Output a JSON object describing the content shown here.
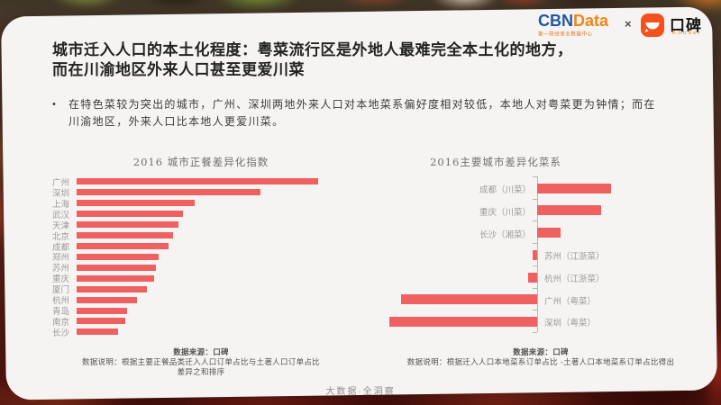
{
  "brand": {
    "cbn": "CBN",
    "cbn_data": "Data",
    "cbn_subtitle": "第一财经商业数据中心",
    "separator": "×",
    "koubei_name": "口碑",
    "koubei_latin": "Koubei"
  },
  "title": {
    "line1": "城市迁入人口的本土化程度：粤菜流行区是外地人最难完全本土化的地方，",
    "line2": "而在川渝地区外来人口甚至更爱川菜"
  },
  "bullet": {
    "marker": "•",
    "text": "在特色菜较为突出的城市，广州、深圳两地外来人口对本地菜系偏好度相对较低，本地人对粤菜更为钟情；而在川渝地区，外来人口比本地人更爱川菜。"
  },
  "chart_data": [
    {
      "type": "bar",
      "orientation": "horizontal",
      "title": "2016 城市正餐差异化指数",
      "categories": [
        "广州",
        "深圳",
        "上海",
        "武汉",
        "天津",
        "北京",
        "成都",
        "郑州",
        "苏州",
        "重庆",
        "厦门",
        "杭州",
        "青岛",
        "南京",
        "长沙"
      ],
      "values": [
        100,
        76,
        49,
        44,
        42,
        40,
        38,
        34,
        33,
        32,
        29,
        25,
        21,
        20,
        17
      ],
      "value_note": "relative index, 广州=100; estimated from bar lengths, no numeric axis shown",
      "legend_position": "none",
      "grid": false,
      "source": "数据来源：口碑",
      "description": "数据说明：根据主要正餐品类迁入人口订单占比与土著人口订单占比差异之和排序"
    },
    {
      "type": "bar",
      "orientation": "horizontal-diverging",
      "title": "2016主要城市差异化菜系",
      "categories": [
        "成都（川菜）",
        "重庆（川菜）",
        "长沙（湘菜）",
        "苏州（江浙菜）",
        "杭州（江浙菜）",
        "广州（粤菜）",
        "深圳（粤菜）"
      ],
      "values": [
        50,
        43,
        16,
        -3,
        -6,
        -92,
        -100
      ],
      "value_note": "relative scale, 深圳=-100; estimated from bar lengths, no numeric axis shown",
      "legend_position": "none",
      "grid": false,
      "source": "数据来源：口碑",
      "description": "数据说明：根据迁入人口本地菜系订单占比 -土著人口本地菜系订单占比得出"
    }
  ],
  "footer": {
    "slogan": "大数据·全洞察"
  },
  "colors": {
    "bar": "#ef6161",
    "cbn_blue": "#2157a0",
    "cbn_orange": "#f08519",
    "koubei_orange": "#f4511f",
    "card_bg": "#f6f4f2"
  }
}
